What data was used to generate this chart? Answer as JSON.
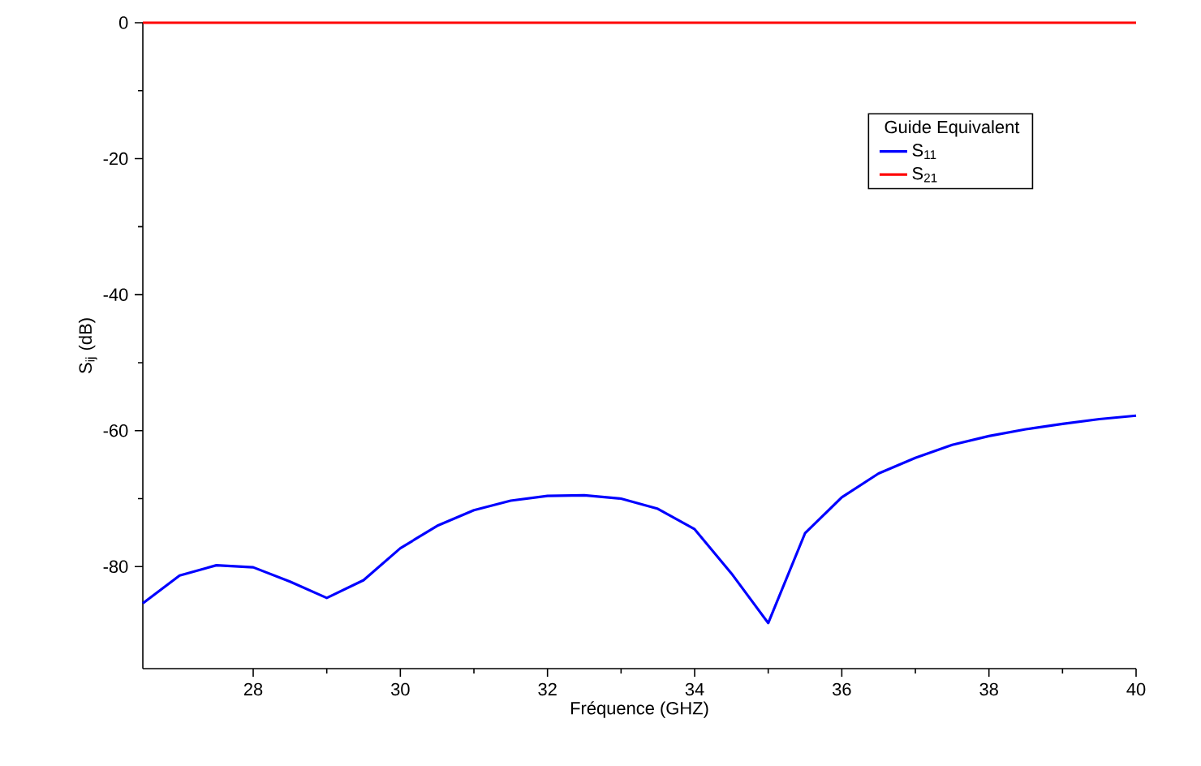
{
  "chart_data": {
    "type": "line",
    "xlabel": "Fréquence (GHZ)",
    "ylabel": "S$_{ij}$ (dB)",
    "legend_title": "Guide Equivalent",
    "x": [
      26.5,
      27,
      27.5,
      28,
      28.5,
      29,
      29.5,
      30,
      30.5,
      31,
      31.5,
      32,
      32.5,
      33,
      33.5,
      34,
      34.5,
      35,
      35.5,
      36,
      36.5,
      37,
      37.5,
      38,
      38.5,
      39,
      39.5,
      40
    ],
    "series": [
      {
        "name": "S$_{11}$",
        "color": "#0000ff",
        "values": [
          -85.4,
          -81.3,
          -79.8,
          -80.1,
          -82.2,
          -84.6,
          -82,
          -77.3,
          -74,
          -71.7,
          -70.3,
          -69.6,
          -69.5,
          -70,
          -71.5,
          -74.5,
          -81,
          -88.3,
          -75.1,
          -69.8,
          -66.3,
          -64,
          -62.1,
          -60.8,
          -59.8,
          -59,
          -58.3,
          -57.8
        ]
      },
      {
        "name": "S$_{21}$",
        "color": "#ff0000",
        "values": [
          0,
          0,
          0,
          0,
          0,
          0,
          0,
          0,
          0,
          0,
          0,
          0,
          0,
          0,
          0,
          0,
          0,
          0,
          0,
          0,
          0,
          0,
          0,
          0,
          0,
          0,
          0,
          0
        ]
      }
    ],
    "xlim": [
      26.5,
      40
    ],
    "ylim": [
      -95,
      0
    ],
    "xticks": [
      28,
      30,
      32,
      34,
      36,
      38,
      40
    ],
    "yticks": [
      -80,
      -60,
      -40,
      -20,
      0
    ],
    "grid": false,
    "legend": "top right",
    "marker": "none",
    "line_style": "solid"
  }
}
